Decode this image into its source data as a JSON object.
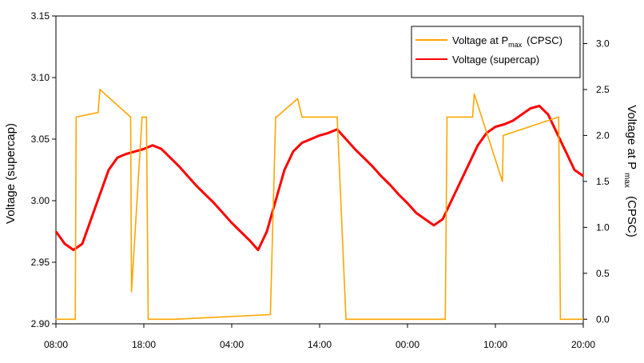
{
  "chart_data": {
    "type": "line",
    "xlabel": "",
    "x_ticks": [
      "08:00",
      "18:00",
      "04:00",
      "14:00",
      "00:00",
      "10:00",
      "20:00"
    ],
    "y_left": {
      "label": "Voltage (supercap)",
      "range": [
        2.9,
        3.15
      ],
      "ticks": [
        "2.90",
        "2.95",
        "3.00",
        "3.05",
        "3.10",
        "3.15"
      ]
    },
    "y_right": {
      "label_main": "Voltage at P",
      "label_sub": "max",
      "label_tail": "(CPSC)",
      "range": [
        -0.05,
        3.3
      ],
      "ticks": [
        "0.0",
        "0.5",
        "1.0",
        "1.5",
        "2.0",
        "2.5",
        "3.0"
      ]
    },
    "x_range_hours": [
      0,
      60
    ],
    "legend": {
      "position": "top-right",
      "entries": [
        {
          "text_main": "Voltage at P",
          "text_sub": "max",
          "text_tail": "(CPSC)",
          "color": "#FFA500"
        },
        {
          "text_main": "Voltage (supercap)",
          "text_sub": "",
          "text_tail": "",
          "color": "#FF0000"
        }
      ]
    },
    "series": [
      {
        "name": "Voltage (supercap)",
        "axis": "left",
        "color": "#FF0000",
        "x": [
          0,
          1,
          2,
          3,
          4,
          5,
          6,
          7,
          8,
          9,
          10,
          11,
          12,
          13,
          14,
          15,
          16,
          17,
          18,
          19,
          20,
          21,
          22,
          23,
          24,
          25,
          26,
          27,
          28,
          29,
          30,
          31,
          32,
          33,
          34,
          35,
          36,
          37,
          38,
          39,
          40,
          41,
          42,
          43,
          44,
          45,
          46,
          47,
          48,
          49,
          50,
          51,
          52,
          53,
          54,
          55,
          56,
          57,
          58,
          59,
          60
        ],
        "y": [
          2.975,
          2.965,
          2.96,
          2.965,
          2.985,
          3.005,
          3.025,
          3.035,
          3.038,
          3.04,
          3.042,
          3.045,
          3.042,
          3.035,
          3.028,
          3.02,
          3.012,
          3.005,
          2.998,
          2.99,
          2.982,
          2.975,
          2.968,
          2.96,
          2.975,
          3.0,
          3.025,
          3.04,
          3.047,
          3.05,
          3.053,
          3.055,
          3.058,
          3.05,
          3.042,
          3.035,
          3.028,
          3.02,
          3.013,
          3.005,
          2.998,
          2.99,
          2.985,
          2.98,
          2.985,
          3.0,
          3.015,
          3.03,
          3.045,
          3.055,
          3.06,
          3.062,
          3.065,
          3.07,
          3.075,
          3.077,
          3.07,
          3.055,
          3.04,
          3.025,
          3.02
        ]
      },
      {
        "name": "Voltage at Pmax (CPSC)",
        "axis": "right",
        "color": "#FFA500",
        "x": [
          0,
          2.2,
          2.3,
          4.8,
          5,
          8.5,
          8.6,
          9.8,
          10.3,
          10.5,
          12.5,
          13.5,
          24.4,
          25.0,
          25.1,
          27.5,
          28.0,
          29.2,
          32.0,
          33.0,
          33.2,
          44.3,
          44.5,
          47.4,
          47.6,
          50.8,
          50.9,
          57.2,
          57.4,
          60
        ],
        "y": [
          0.0,
          0.0,
          2.2,
          2.25,
          2.5,
          2.2,
          0.3,
          2.2,
          2.2,
          0.0,
          0.0,
          0.0,
          0.05,
          2.2,
          2.2,
          2.4,
          2.2,
          2.2,
          2.2,
          0.0,
          0.0,
          0.0,
          2.2,
          2.2,
          2.45,
          1.5,
          2.0,
          2.2,
          0.0,
          0.0
        ]
      }
    ]
  }
}
